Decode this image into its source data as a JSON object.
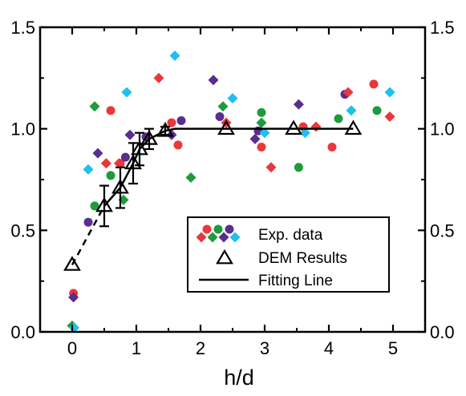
{
  "chart_data": {
    "type": "scatter",
    "xlabel": "h/d",
    "ylabel": "",
    "xlim": [
      -0.5,
      5.5
    ],
    "ylim": [
      0,
      1.5
    ],
    "x_ticks": [
      0,
      1,
      2,
      3,
      4,
      5
    ],
    "y_ticks": [
      0.0,
      0.5,
      1.0,
      1.5
    ],
    "x_tick_labels": [
      "0",
      "1",
      "2",
      "3",
      "4",
      "5"
    ],
    "y_tick_labels": [
      "0.0",
      "0.5",
      "1.0",
      "1.5"
    ],
    "right_y_tick_labels": [
      "0.0",
      "0.5",
      "1.0",
      "1.5"
    ],
    "grid": false,
    "legend": {
      "position": "bottom-right",
      "entries": [
        {
          "label": "Exp. data",
          "marker": "mixed-dots"
        },
        {
          "label": "DEM Results",
          "marker": "open-triangle"
        },
        {
          "label": "Fitting Line",
          "marker": "line"
        }
      ]
    },
    "colors": {
      "red": "#e8383b",
      "green": "#1f9a3c",
      "purple": "#5b2d8e",
      "cyan": "#1ec0ee",
      "black": "#000000"
    },
    "exp_data": {
      "red_circles": [
        [
          0.02,
          0.19
        ],
        [
          0.6,
          1.09
        ],
        [
          0.75,
          0.83
        ],
        [
          1.55,
          1.03
        ],
        [
          1.65,
          0.92
        ],
        [
          2.95,
          0.91
        ],
        [
          3.6,
          1.01
        ],
        [
          4.05,
          0.91
        ],
        [
          4.7,
          1.22
        ]
      ],
      "red_diamonds": [
        [
          0.53,
          0.83
        ],
        [
          0.73,
          0.83
        ],
        [
          1.35,
          1.25
        ],
        [
          2.4,
          1.03
        ],
        [
          3.1,
          0.81
        ],
        [
          3.8,
          1.01
        ],
        [
          4.3,
          1.18
        ],
        [
          4.95,
          1.06
        ]
      ],
      "green_circles": [
        [
          0.35,
          0.62
        ],
        [
          0.6,
          0.77
        ],
        [
          2.95,
          1.08
        ],
        [
          3.53,
          0.81
        ],
        [
          4.15,
          1.05
        ],
        [
          4.75,
          1.09
        ]
      ],
      "green_diamonds": [
        [
          0.0,
          0.03
        ],
        [
          0.35,
          1.11
        ],
        [
          0.8,
          0.65
        ],
        [
          1.85,
          0.76
        ],
        [
          2.35,
          1.11
        ],
        [
          2.95,
          1.03
        ]
      ],
      "purple_circles": [
        [
          0.25,
          0.54
        ],
        [
          0.83,
          0.86
        ],
        [
          1.15,
          0.96
        ],
        [
          1.7,
          1.04
        ],
        [
          2.3,
          1.06
        ],
        [
          2.9,
          0.99
        ],
        [
          4.25,
          1.17
        ]
      ],
      "purple_diamonds": [
        [
          0.02,
          0.17
        ],
        [
          0.4,
          0.88
        ],
        [
          0.9,
          0.97
        ],
        [
          1.55,
          0.97
        ],
        [
          2.2,
          1.24
        ],
        [
          2.85,
          0.95
        ],
        [
          3.53,
          1.12
        ]
      ],
      "cyan_diamonds": [
        [
          0.03,
          0.02
        ],
        [
          0.25,
          0.8
        ],
        [
          0.85,
          1.18
        ],
        [
          1.6,
          1.36
        ],
        [
          2.5,
          1.15
        ],
        [
          3.0,
          0.98
        ],
        [
          3.63,
          0.98
        ],
        [
          4.35,
          1.09
        ],
        [
          4.95,
          1.18
        ]
      ]
    },
    "dem_results": {
      "x": [
        0.0,
        0.5,
        0.75,
        0.95,
        1.05,
        1.2,
        1.45,
        2.4,
        3.45,
        4.38
      ],
      "y": [
        0.33,
        0.62,
        0.71,
        0.83,
        0.9,
        0.95,
        0.99,
        1.0,
        1.0,
        1.0
      ],
      "yerr": [
        0,
        0.1,
        0.1,
        0.1,
        0.08,
        0.05,
        0.02,
        0,
        0,
        0
      ]
    },
    "fitting_line": {
      "dashed": {
        "x": [
          0.0,
          0.5
        ],
        "y": [
          0.33,
          0.62
        ]
      },
      "solid": {
        "x": [
          0.5,
          0.75,
          0.95,
          1.05,
          1.2,
          1.45,
          1.6,
          4.38
        ],
        "y": [
          0.62,
          0.71,
          0.83,
          0.9,
          0.95,
          0.99,
          1.0,
          1.0
        ]
      }
    }
  }
}
